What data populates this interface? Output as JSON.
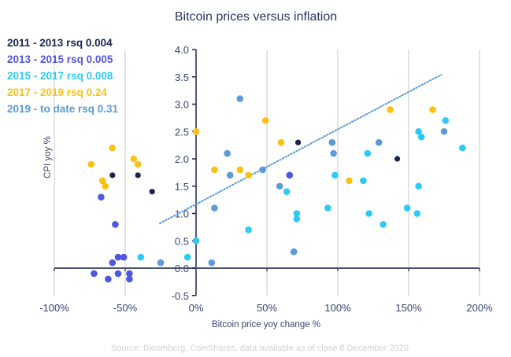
{
  "chart_data": {
    "type": "scatter",
    "title": "Bitcoin prices versus inflation",
    "xlabel": "Bitcoin price yoy change %",
    "ylabel": "CPI yoy %",
    "source": "Source: Bloomberg, CoinShares, data available as of close 8 December 2020",
    "xlim": [
      -100,
      200
    ],
    "ylim": [
      -0.5,
      4.0
    ],
    "x_ticks": [
      -100,
      -50,
      0,
      50,
      100,
      150,
      200
    ],
    "x_tick_labels": [
      "-100%",
      "-50%",
      "0%",
      "50%",
      "100%",
      "150%",
      "200%"
    ],
    "y_ticks": [
      -0.5,
      0.0,
      0.5,
      1.0,
      1.5,
      2.0,
      2.5,
      3.0,
      3.5,
      4.0
    ],
    "y_tick_labels": [
      "-0.5",
      "0.0",
      "0.5",
      "1.0",
      "1.5",
      "2.0",
      "2.5",
      "3.0",
      "3.5",
      "4.0"
    ],
    "grid": "vertical",
    "legend_position": "top-left",
    "series": [
      {
        "name": "2011 - 2013 rsq 0.004",
        "color": "#1c2350",
        "points": [
          [
            -59,
            1.7
          ],
          [
            -41,
            1.7
          ],
          [
            -31,
            1.4
          ],
          [
            72,
            2.3
          ],
          [
            142,
            2.0
          ]
        ]
      },
      {
        "name": "2013 - 2015 rsq 0.005",
        "color": "#5156e0",
        "points": [
          [
            -67,
            1.3
          ],
          [
            -57,
            0.8
          ],
          [
            -55,
            0.2
          ],
          [
            -51,
            0.2
          ],
          [
            -59,
            0.1
          ],
          [
            -72,
            -0.1
          ],
          [
            -62,
            -0.2
          ],
          [
            -55,
            -0.1
          ],
          [
            -47,
            -0.1
          ],
          [
            -47,
            -0.2
          ],
          [
            66,
            1.7
          ]
        ]
      },
      {
        "name": "2015 - 2017 rsq 0.008",
        "color": "#2ecaf5",
        "points": [
          [
            -39,
            0.2
          ],
          [
            -6,
            0.2
          ],
          [
            0,
            0.5
          ],
          [
            37,
            0.7
          ],
          [
            64,
            1.4
          ],
          [
            71,
            1.0
          ],
          [
            71,
            0.9
          ],
          [
            93,
            1.1
          ],
          [
            98,
            1.7
          ],
          [
            118,
            1.6
          ],
          [
            121,
            2.1
          ],
          [
            122,
            1.0
          ],
          [
            132,
            0.8
          ],
          [
            149,
            1.1
          ],
          [
            156,
            1.0
          ],
          [
            157,
            1.5
          ],
          [
            157,
            2.5
          ],
          [
            159,
            2.4
          ],
          [
            176,
            2.7
          ],
          [
            188,
            2.2
          ]
        ]
      },
      {
        "name": "2017 - 2019 rsq 0.24",
        "color": "#fbc112",
        "points": [
          [
            -74,
            1.9
          ],
          [
            -59,
            2.2
          ],
          [
            -66,
            1.6
          ],
          [
            -64,
            1.5
          ],
          [
            -44,
            2.0
          ],
          [
            -41,
            1.9
          ],
          [
            0,
            2.5
          ],
          [
            13,
            1.8
          ],
          [
            31,
            1.8
          ],
          [
            37,
            1.7
          ],
          [
            49,
            2.7
          ],
          [
            60,
            2.3
          ],
          [
            108,
            1.6
          ],
          [
            137,
            2.9
          ],
          [
            167,
            2.9
          ]
        ]
      },
      {
        "name": "2019 - to date rsq 0.31",
        "color": "#5b9bd8",
        "points": [
          [
            -25,
            0.1
          ],
          [
            11,
            0.1
          ],
          [
            13,
            1.1
          ],
          [
            22,
            2.1
          ],
          [
            24,
            1.7
          ],
          [
            31,
            3.1
          ],
          [
            47,
            1.8
          ],
          [
            59,
            1.5
          ],
          [
            69,
            0.3
          ],
          [
            96,
            2.3
          ],
          [
            97,
            2.1
          ],
          [
            129,
            2.3
          ],
          [
            175,
            2.5
          ]
        ]
      }
    ],
    "trendline": {
      "style": "dotted",
      "color": "#5b9bd8",
      "from": [
        -25.5,
        0.82
      ],
      "to": [
        173,
        3.54
      ]
    }
  }
}
